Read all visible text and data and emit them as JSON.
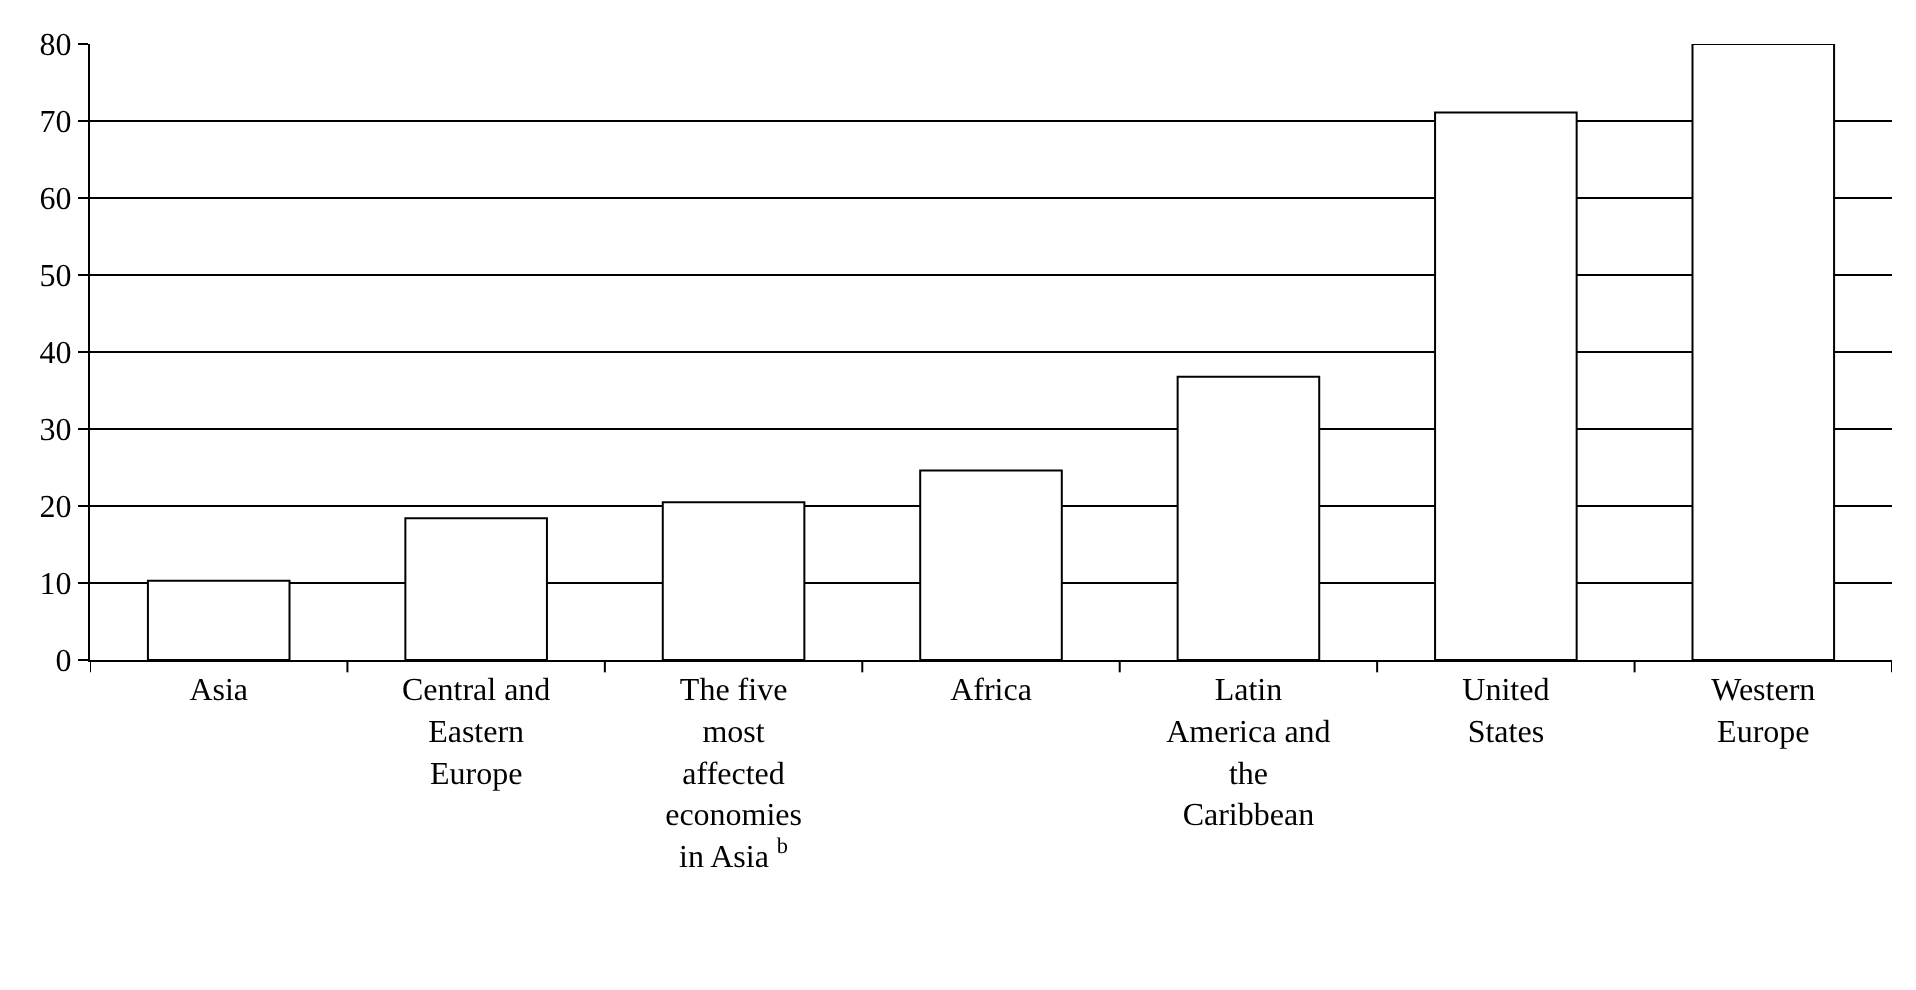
{
  "chart_data": {
    "type": "bar",
    "categories": [
      "Asia",
      "Central and Eastern Europe",
      "The five most affected economies in Asia $^{b}$",
      "Africa",
      "Latin America and the Caribbean",
      "United States",
      "Western Europe"
    ],
    "values": [
      10.3,
      18.4,
      20.5,
      24.6,
      36.8,
      71.1,
      80
    ],
    "color": "#ffffff",
    "ylim": [
      0,
      80
    ],
    "yticks": [
      0,
      10,
      20,
      30,
      40,
      50,
      60,
      70,
      80
    ],
    "grid": "y"
  }
}
